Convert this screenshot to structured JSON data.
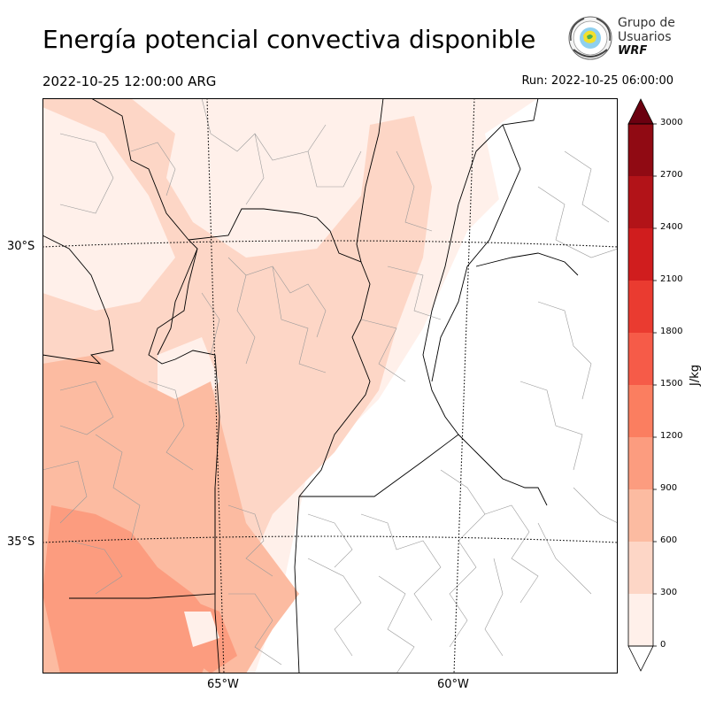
{
  "header": {
    "title": "Energía potencial convectiva disponible",
    "valid_time": "2022-10-25 12:00:00 ARG",
    "run_time": "Run: 2022-10-25 06:00:00"
  },
  "logo": {
    "line1": "Grupo de",
    "line2": "Usuarios",
    "line3": "WRF"
  },
  "map": {
    "variable": "CAPE",
    "latitude_labels": [
      "30°S",
      "35°S"
    ],
    "longitude_labels": [
      "65°W",
      "60°W"
    ],
    "region": "Centro de Argentina",
    "fill_colors": {
      "land": "#ffffff",
      "boundary": "#000000",
      "subdivision": "#999999",
      "gridline": "#000000"
    }
  },
  "colorbar": {
    "unit": "J/kg",
    "levels": [
      "0",
      "300",
      "600",
      "900",
      "1200",
      "1500",
      "1800",
      "2100",
      "2400",
      "2700",
      "3000"
    ],
    "colors": [
      "#fff0ea",
      "#fdd6c6",
      "#fcbba1",
      "#fc9c7f",
      "#fb7e60",
      "#f65b48",
      "#ea3b30",
      "#d01d1e",
      "#b21318",
      "#900a13",
      "#6b0010"
    ],
    "extend": "both"
  }
}
